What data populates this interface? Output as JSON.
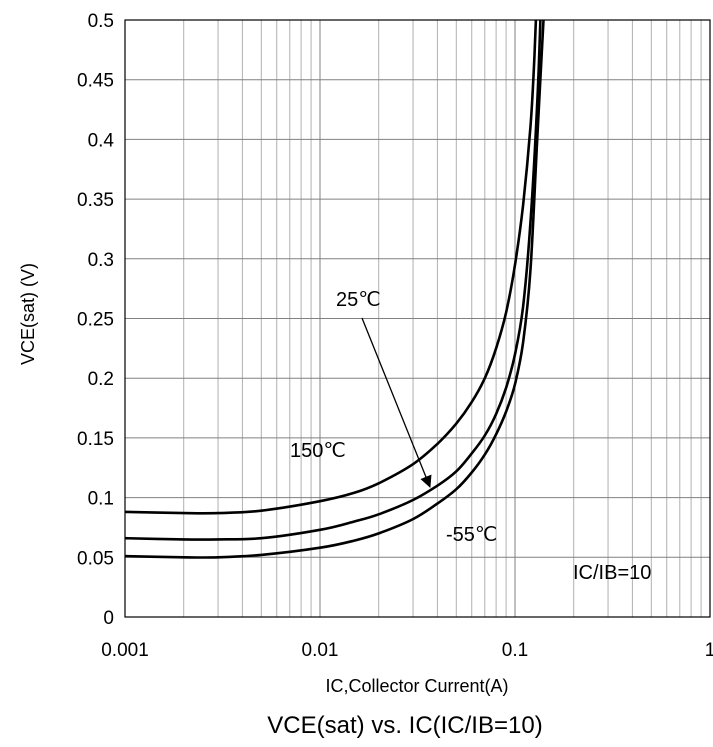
{
  "chart_data": {
    "type": "line",
    "title": "VCE(sat) vs. IC(IC/IB=10)",
    "xlabel": "IC,Collector Current(A)",
    "ylabel": "VCE(sat) (V)",
    "x_scale": "log",
    "xlim": [
      0.001,
      1
    ],
    "ylim": [
      0,
      0.5
    ],
    "grid": true,
    "x_ticks": [
      "0.001",
      "0.01",
      "0.1",
      "1"
    ],
    "y_ticks": [
      "0",
      "0.05",
      "0.1",
      "0.15",
      "0.2",
      "0.25",
      "0.3",
      "0.35",
      "0.4",
      "0.45",
      "0.5"
    ],
    "annotation": "IC/IB=10",
    "series": [
      {
        "name": "150℃",
        "x": [
          0.001,
          0.002,
          0.003,
          0.005,
          0.01,
          0.015,
          0.02,
          0.03,
          0.04,
          0.05,
          0.06,
          0.07,
          0.08,
          0.09,
          0.1,
          0.11,
          0.12,
          0.125,
          0.128
        ],
        "y": [
          0.088,
          0.087,
          0.087,
          0.089,
          0.097,
          0.104,
          0.112,
          0.128,
          0.145,
          0.162,
          0.18,
          0.2,
          0.225,
          0.255,
          0.295,
          0.345,
          0.41,
          0.46,
          0.5
        ]
      },
      {
        "name": "25℃",
        "x": [
          0.001,
          0.002,
          0.003,
          0.005,
          0.01,
          0.015,
          0.02,
          0.03,
          0.04,
          0.05,
          0.06,
          0.07,
          0.08,
          0.09,
          0.1,
          0.11,
          0.12,
          0.13,
          0.135
        ],
        "y": [
          0.066,
          0.065,
          0.065,
          0.066,
          0.073,
          0.08,
          0.086,
          0.098,
          0.11,
          0.122,
          0.137,
          0.152,
          0.17,
          0.192,
          0.22,
          0.26,
          0.33,
          0.43,
          0.5
        ]
      },
      {
        "name": "-55℃",
        "x": [
          0.001,
          0.002,
          0.003,
          0.005,
          0.01,
          0.015,
          0.02,
          0.03,
          0.04,
          0.05,
          0.06,
          0.07,
          0.08,
          0.09,
          0.1,
          0.11,
          0.12,
          0.13,
          0.14
        ],
        "y": [
          0.051,
          0.05,
          0.05,
          0.052,
          0.058,
          0.064,
          0.07,
          0.082,
          0.095,
          0.107,
          0.121,
          0.136,
          0.153,
          0.172,
          0.195,
          0.23,
          0.29,
          0.4,
          0.5
        ]
      }
    ]
  }
}
